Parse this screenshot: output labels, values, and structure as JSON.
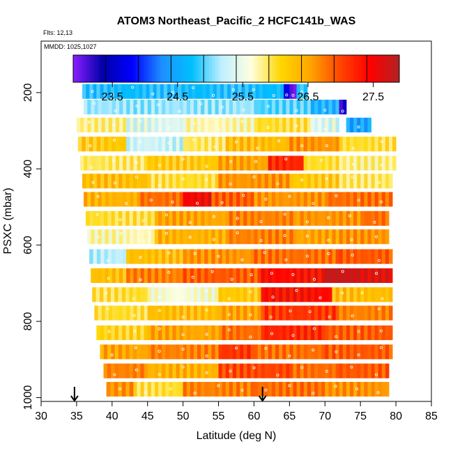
{
  "chart_data": {
    "type": "heatmap",
    "title": "ATOM3 Northeast_Pacific_2 HCFC141b_WAS",
    "annotations": [
      "Flts: 12,13",
      "MMDD: 1025,1027"
    ],
    "xlabel": "Latitude (deg N)",
    "ylabel": "PSXC (mbar)",
    "xlim": [
      30,
      85
    ],
    "ylim": [
      1010,
      65
    ],
    "xticks": [
      30,
      35,
      40,
      45,
      50,
      55,
      60,
      65,
      70,
      75,
      80,
      85
    ],
    "yticks": [
      200,
      400,
      600,
      800,
      1000
    ],
    "colorbar": {
      "ticks": [
        23.5,
        24.5,
        25.5,
        26.5,
        27.5
      ],
      "range": [
        22.9,
        27.9
      ],
      "colors": [
        "#8c1eff",
        "#0000a8",
        "#0000ff",
        "#1e90ff",
        "#00bfff",
        "#bfefff",
        "#ffffe0",
        "#ffd700",
        "#ffa500",
        "#ff4500",
        "#ff0000",
        "#b22222"
      ],
      "bins": 10
    },
    "arrows_at_latitude": [
      34.7,
      61.2
    ],
    "rows": [
      {
        "p": 197,
        "segments": [
          [
            35.8,
            64.2,
            24.7
          ],
          [
            64.2,
            65.0,
            23.5
          ],
          [
            65.0,
            66.0,
            23.0
          ],
          [
            66.0,
            67.5,
            24.8
          ]
        ]
      },
      {
        "p": 238,
        "segments": [
          [
            36.0,
            60.0,
            25.1
          ],
          [
            60.0,
            68.0,
            24.9
          ],
          [
            68.0,
            72.0,
            24.6
          ],
          [
            72.0,
            73.0,
            23.3
          ]
        ]
      },
      {
        "p": 285,
        "segments": [
          [
            35.0,
            42.0,
            25.8
          ],
          [
            42.0,
            50.0,
            25.4
          ],
          [
            50.0,
            60.0,
            25.7
          ],
          [
            60.0,
            68.0,
            26.0
          ],
          [
            68.0,
            72.0,
            25.4
          ],
          [
            73.0,
            76.5,
            24.5
          ]
        ]
      },
      {
        "p": 335,
        "segments": [
          [
            35.2,
            42.0,
            26.2
          ],
          [
            42.0,
            50.0,
            25.3
          ],
          [
            50.0,
            56.0,
            25.9
          ],
          [
            56.0,
            65.0,
            26.3
          ],
          [
            65.0,
            72.0,
            26.6
          ],
          [
            72.0,
            80.0,
            26.0
          ]
        ]
      },
      {
        "p": 385,
        "segments": [
          [
            35.5,
            45.0,
            25.9
          ],
          [
            45.0,
            55.0,
            26.2
          ],
          [
            55.0,
            62.0,
            26.5
          ],
          [
            62.0,
            67.0,
            27.2
          ],
          [
            67.0,
            72.0,
            26.0
          ],
          [
            72.0,
            80.0,
            25.8
          ]
        ]
      },
      {
        "p": 432,
        "segments": [
          [
            35.8,
            45.0,
            26.3
          ],
          [
            45.0,
            55.0,
            26.0
          ],
          [
            55.0,
            65.0,
            26.6
          ],
          [
            65.0,
            72.0,
            26.2
          ],
          [
            72.0,
            79.5,
            25.9
          ]
        ]
      },
      {
        "p": 480,
        "segments": [
          [
            36.0,
            44.0,
            26.4
          ],
          [
            44.0,
            50.0,
            26.8
          ],
          [
            50.0,
            54.0,
            27.5
          ],
          [
            54.0,
            60.0,
            26.9
          ],
          [
            60.0,
            70.0,
            26.6
          ],
          [
            70.0,
            79.5,
            26.8
          ]
        ]
      },
      {
        "p": 530,
        "segments": [
          [
            36.3,
            46.0,
            26.0
          ],
          [
            46.0,
            56.0,
            26.5
          ],
          [
            56.0,
            66.0,
            26.7
          ],
          [
            66.0,
            75.0,
            26.6
          ],
          [
            75.0,
            79.0,
            26.8
          ]
        ]
      },
      {
        "p": 578,
        "segments": [
          [
            36.5,
            46.0,
            25.7
          ],
          [
            46.0,
            56.0,
            26.4
          ],
          [
            56.0,
            66.0,
            26.7
          ],
          [
            66.0,
            72.0,
            26.5
          ],
          [
            72.0,
            79.0,
            26.6
          ]
        ]
      },
      {
        "p": 630,
        "segments": [
          [
            36.8,
            42.0,
            25.2
          ],
          [
            42.0,
            50.0,
            26.3
          ],
          [
            50.0,
            60.0,
            26.6
          ],
          [
            60.0,
            72.0,
            26.8
          ],
          [
            72.0,
            79.5,
            26.9
          ]
        ]
      },
      {
        "p": 680,
        "segments": [
          [
            37.0,
            42.0,
            26.3
          ],
          [
            42.0,
            50.0,
            26.7
          ],
          [
            50.0,
            61.0,
            26.9
          ],
          [
            61.0,
            70.0,
            27.4
          ],
          [
            70.0,
            75.0,
            27.8
          ],
          [
            75.0,
            79.5,
            27.6
          ]
        ]
      },
      {
        "p": 730,
        "segments": [
          [
            37.2,
            45.0,
            26.0
          ],
          [
            45.0,
            55.0,
            25.6
          ],
          [
            55.0,
            61.0,
            26.2
          ],
          [
            61.0,
            71.0,
            27.4
          ],
          [
            71.0,
            79.5,
            26.3
          ]
        ]
      },
      {
        "p": 778,
        "segments": [
          [
            37.5,
            45.0,
            26.0
          ],
          [
            45.0,
            55.0,
            26.3
          ],
          [
            55.0,
            61.0,
            26.5
          ],
          [
            61.0,
            72.0,
            27.1
          ],
          [
            72.0,
            79.5,
            26.7
          ]
        ]
      },
      {
        "p": 830,
        "segments": [
          [
            37.8,
            45.0,
            26.1
          ],
          [
            45.0,
            55.0,
            26.5
          ],
          [
            55.0,
            61.0,
            26.8
          ],
          [
            61.0,
            70.0,
            27.2
          ],
          [
            70.0,
            79.5,
            26.9
          ]
        ]
      },
      {
        "p": 880,
        "segments": [
          [
            38.3,
            45.0,
            26.5
          ],
          [
            45.0,
            55.0,
            26.7
          ],
          [
            55.0,
            60.0,
            27.1
          ],
          [
            60.0,
            70.0,
            26.8
          ],
          [
            70.0,
            79.5,
            26.9
          ]
        ]
      },
      {
        "p": 930,
        "segments": [
          [
            38.8,
            45.0,
            26.7
          ],
          [
            45.0,
            55.0,
            26.4
          ],
          [
            55.0,
            65.0,
            27.0
          ],
          [
            65.0,
            72.0,
            26.8
          ],
          [
            72.0,
            79.0,
            26.9
          ]
        ]
      },
      {
        "p": 978,
        "segments": [
          [
            39.2,
            43.0,
            26.6
          ],
          [
            43.0,
            50.0,
            26.0
          ],
          [
            50.0,
            60.0,
            26.7
          ],
          [
            60.0,
            70.0,
            26.8
          ],
          [
            70.0,
            79.0,
            26.6
          ]
        ]
      }
    ]
  }
}
